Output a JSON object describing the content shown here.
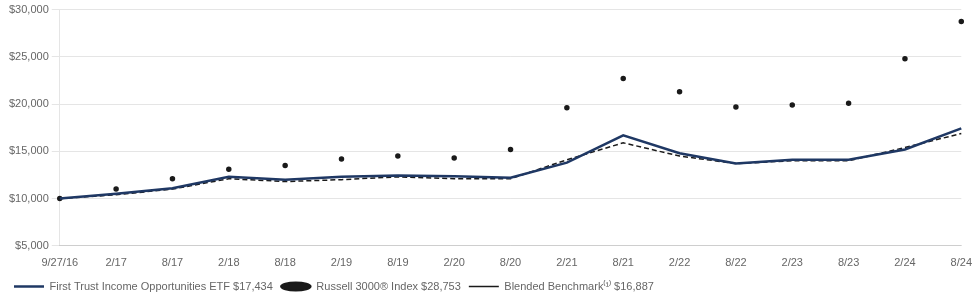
{
  "chart_data": {
    "type": "line",
    "categories": [
      "9/27/16",
      "2/17",
      "8/17",
      "2/18",
      "8/18",
      "2/19",
      "8/19",
      "2/20",
      "8/20",
      "2/21",
      "8/21",
      "2/22",
      "8/22",
      "2/23",
      "8/23",
      "2/24",
      "8/24"
    ],
    "series": [
      {
        "name": "First Trust Income Opportunities ETF $17,434",
        "color": "#1f3864",
        "line_style": "solid",
        "marker": "none",
        "values": [
          10000,
          10500,
          11100,
          12300,
          12000,
          12300,
          12450,
          12350,
          12200,
          13800,
          16700,
          14800,
          13700,
          14100,
          14100,
          15200,
          17434
        ]
      },
      {
        "name": "Russell 3000® Index $28,753",
        "color": "#1a1a1a",
        "line_style": "none",
        "marker": "dot",
        "values": [
          10000,
          11000,
          12100,
          13100,
          13500,
          14200,
          14500,
          14300,
          15200,
          19600,
          22700,
          21300,
          19700,
          19900,
          20100,
          24800,
          28753
        ]
      },
      {
        "name": "Blended Benchmark⁽¹⁾ $16,887",
        "color": "#1a1a1a",
        "line_style": "dashed",
        "marker": "none",
        "values": [
          10000,
          10400,
          11000,
          12100,
          11800,
          12000,
          12300,
          12100,
          12100,
          14100,
          15900,
          14500,
          13700,
          14000,
          14000,
          15400,
          16887
        ]
      }
    ],
    "ylim": [
      5000,
      30000
    ],
    "yticks": [
      {
        "value": 5000,
        "label": "$5,000"
      },
      {
        "value": 10000,
        "label": "$10,000"
      },
      {
        "value": 15000,
        "label": "$15,000"
      },
      {
        "value": 20000,
        "label": "$20,000"
      },
      {
        "value": 25000,
        "label": "$25,000"
      },
      {
        "value": 30000,
        "label": "$30,000"
      }
    ],
    "grid": true,
    "legend": "bottom"
  }
}
